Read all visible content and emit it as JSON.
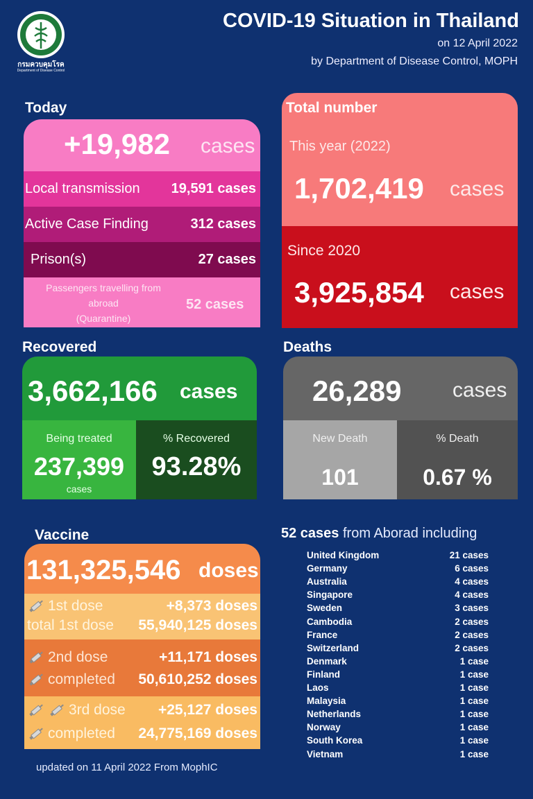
{
  "header": {
    "logo_text": "กรมควบคุมโรค",
    "logo_subtext": "Department of Disease Control",
    "title": "COVID-19 Situation in Thailand",
    "date_line": "on 12 April 2022",
    "source_line": "by Department of Disease Control, MOPH"
  },
  "today": {
    "title": "Today",
    "total_value": "+19,982",
    "total_unit": "cases",
    "rows": [
      {
        "label": "Local transmission",
        "value": "19,591 cases"
      },
      {
        "label": "Active Case Finding",
        "value": "312 cases"
      },
      {
        "label": "Prison(s)",
        "value": "27 cases"
      }
    ],
    "passengers_label_1": "Passengers travelling from",
    "passengers_label_2": "abroad",
    "passengers_label_3": "(Quarantine)",
    "passengers_value": "52 cases"
  },
  "total": {
    "title": "Total number",
    "year_label": "This year (2022)",
    "year_value": "1,702,419",
    "year_unit": "cases",
    "since_label": "Since 2020",
    "since_value": "3,925,854",
    "since_unit": "cases"
  },
  "recovered": {
    "title": "Recovered",
    "value": "3,662,166",
    "unit": "cases",
    "treated_label": "Being treated",
    "treated_value": "237,399",
    "treated_unit": "cases",
    "pct_label": "% Recovered",
    "pct_value": "93.28%"
  },
  "deaths": {
    "title": "Deaths",
    "value": "26,289",
    "unit": "cases",
    "new_label": "New Death",
    "new_value": "101",
    "pct_label": "% Death",
    "pct_value": "0.67 %"
  },
  "vaccine": {
    "title": "Vaccine",
    "total_value": "131,325,546",
    "total_unit": "doses",
    "dose1_label": "1st dose",
    "dose1_value": "+8,373 doses",
    "dose1_total_label": "total 1st dose",
    "dose1_total_value": "55,940,125 doses",
    "dose2_label": "2nd dose",
    "dose2_value": "+11,171 doses",
    "dose2_total_label": "completed",
    "dose2_total_value": "50,610,252 doses",
    "dose3_label": "3rd dose",
    "dose3_value": "+25,127 doses",
    "dose3_total_label": "completed",
    "dose3_total_value": "24,775,169 doses",
    "updated": "updated on 11 April  2022 From MophIC"
  },
  "abroad": {
    "count": "52 cases",
    "heading_rest": "from Aborad  including",
    "countries": [
      {
        "name": "United Kingdom",
        "cases": "21 cases"
      },
      {
        "name": "Germany",
        "cases": "6 cases"
      },
      {
        "name": "Australia",
        "cases": "4 cases"
      },
      {
        "name": "Singapore",
        "cases": "4 cases"
      },
      {
        "name": "Sweden",
        "cases": "3 cases"
      },
      {
        "name": "Cambodia",
        "cases": "2 cases"
      },
      {
        "name": "France",
        "cases": "2 cases"
      },
      {
        "name": "Switzerland",
        "cases": "2 cases"
      },
      {
        "name": "Denmark",
        "cases": "1 case"
      },
      {
        "name": "Finland",
        "cases": "1 case"
      },
      {
        "name": "Laos",
        "cases": "1 case"
      },
      {
        "name": "Malaysia",
        "cases": "1 case"
      },
      {
        "name": "Netherlands",
        "cases": "1 case"
      },
      {
        "name": "Norway",
        "cases": "1 case"
      },
      {
        "name": "South Korea",
        "cases": "1 case"
      },
      {
        "name": "Vietnam",
        "cases": "1 case"
      }
    ]
  },
  "colors": {
    "background": "#0f3170",
    "today_pink": "#f87cc4",
    "today_dark": "#b01c78",
    "total_salmon": "#f77a7a",
    "total_red": "#c90f1c",
    "recovered_green": "#219a3a",
    "recovered_dark": "#1a4d1f",
    "deaths_gray": "#666666",
    "vaccine_orange": "#f58b4b"
  }
}
